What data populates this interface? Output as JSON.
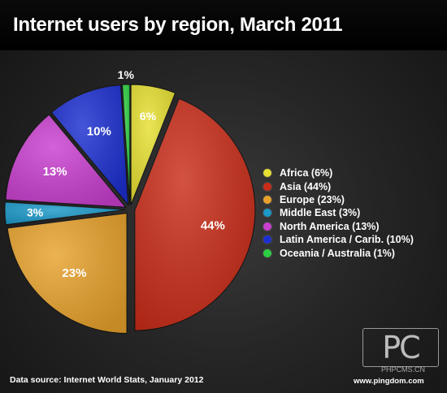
{
  "chart_data": {
    "type": "pie",
    "title": "Internet users by region, March 2011",
    "slices": [
      {
        "label": "Africa (6%)",
        "value": 6,
        "text": "6%",
        "color": "#e6e030"
      },
      {
        "label": "Asia (44%)",
        "value": 44,
        "text": "44%",
        "color": "#c92c18"
      },
      {
        "label": "Europe (23%)",
        "value": 23,
        "text": "23%",
        "color": "#e8a22c"
      },
      {
        "label": "Middle East (3%)",
        "value": 3,
        "text": "3%",
        "color": "#1a98c8"
      },
      {
        "label": "North America (13%)",
        "value": 13,
        "text": "13%",
        "color": "#c93fcf"
      },
      {
        "label": "Latin America / Carib. (10%)",
        "value": 10,
        "text": "10%",
        "color": "#1c2fd0"
      },
      {
        "label": "Oceania / Australia (1%)",
        "value": 1,
        "text": "1%",
        "color": "#2ccf42"
      }
    ],
    "legend_position": "right"
  },
  "source": "Data source: Internet World Stats, January 2012",
  "watermark": {
    "logo": "PC",
    "text": "PHPCMS.CN"
  },
  "credit": "www.pingdom.com"
}
